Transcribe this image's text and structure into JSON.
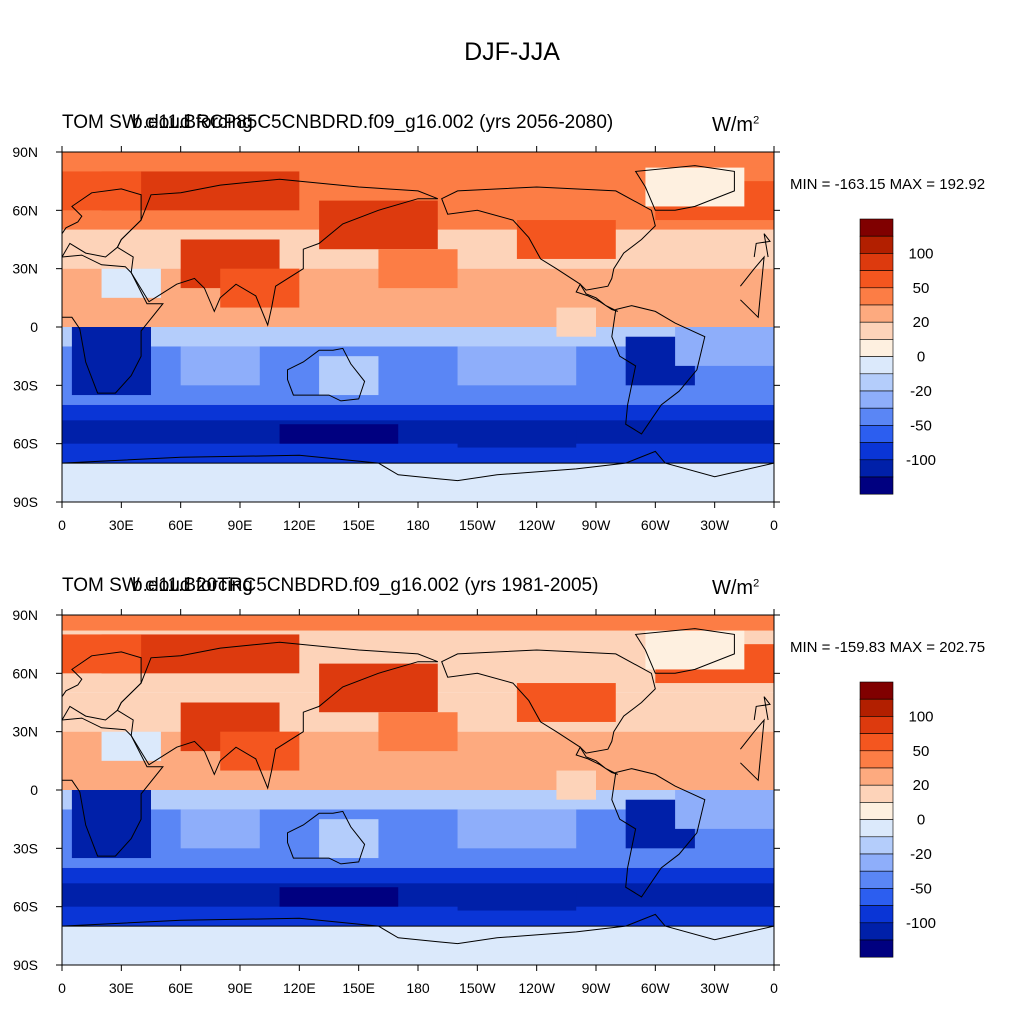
{
  "main_title": "DJF-JJA",
  "panels": [
    {
      "title_left": "TOM SW cloud forcing",
      "title_case": "b.e11.BRCP85C5CNBDRD.f09_g16.002 (yrs 2056-2080)",
      "units": "W/m",
      "units_sup": "2",
      "minmax": "MIN = -163.15 MAX = 192.92"
    },
    {
      "title_left": "TOM SW cloud forcing",
      "title_case": "b.e11.B20TRC5CNBDRD.f09_g16.002 (yrs 1981-2005)",
      "units": "W/m",
      "units_sup": "2",
      "minmax": "MIN = -159.83 MAX = 202.75"
    }
  ],
  "lat_labels": [
    "90N",
    "60N",
    "30N",
    "0",
    "30S",
    "60S",
    "90S"
  ],
  "lon_labels": [
    "0",
    "30E",
    "60E",
    "90E",
    "120E",
    "150E",
    "180",
    "150W",
    "120W",
    "90W",
    "60W",
    "30W",
    "0"
  ],
  "colorbar": {
    "colors": [
      "#800000",
      "#b21f00",
      "#dd3a0e",
      "#f4561f",
      "#fc7d45",
      "#fdaa7f",
      "#fdd3b9",
      "#fef0e0",
      "#dbe9fb",
      "#b4cdfb",
      "#8eaefa",
      "#5a86f5",
      "#2c5ef0",
      "#0a35d6",
      "#0020a9",
      "#000080"
    ],
    "labels": [
      "100",
      "50",
      "20",
      "0",
      "-20",
      "-50",
      "-100"
    ]
  }
}
